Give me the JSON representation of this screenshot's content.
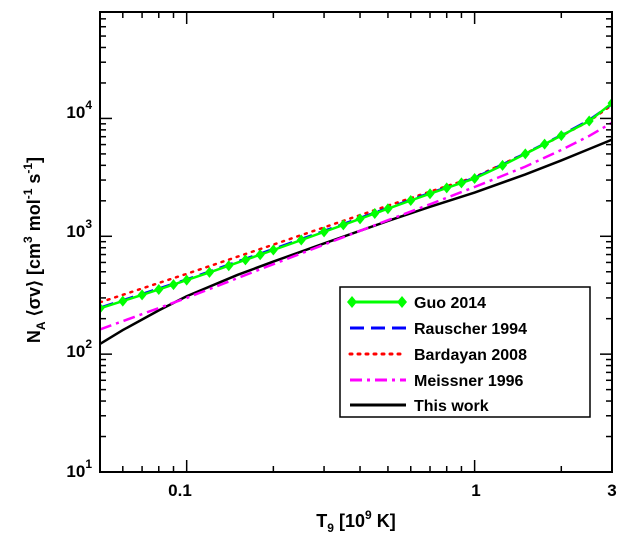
{
  "chart_data": {
    "type": "line",
    "xscale": "log",
    "yscale": "log",
    "xlim": [
      0.05,
      3
    ],
    "ylim": [
      10,
      80000
    ],
    "xlabel": {
      "main": "T",
      "sub": "9",
      "rest": " [10",
      "sup": "9",
      "end": " K]"
    },
    "ylabel": {
      "p1": "N",
      "sub_a": "A",
      "p2": " ⟨σv⟩ [cm",
      "sup3": "3",
      "p3": " mol",
      "sup_m1a": "-1",
      "p4": " s",
      "sup_m1b": "-1",
      "p5": "]"
    },
    "x_ticks": [
      {
        "value": 0.1,
        "label": "0.1"
      },
      {
        "value": 1,
        "label": "1"
      },
      {
        "value": 3,
        "label": "3"
      }
    ],
    "y_ticks": [
      {
        "value": 10,
        "base": "10",
        "exp": "1"
      },
      {
        "value": 100,
        "base": "10",
        "exp": "2"
      },
      {
        "value": 1000,
        "base": "10",
        "exp": "3"
      },
      {
        "value": 10000,
        "base": "10",
        "exp": "4"
      }
    ],
    "legend_position": "bottom-right",
    "grid": false,
    "series": [
      {
        "name": "Guo 2014",
        "color": "#00ff00",
        "style": "solid-diamond",
        "x": [
          0.05,
          0.06,
          0.07,
          0.08,
          0.09,
          0.1,
          0.12,
          0.14,
          0.16,
          0.18,
          0.2,
          0.25,
          0.3,
          0.35,
          0.4,
          0.45,
          0.5,
          0.6,
          0.7,
          0.8,
          0.9,
          1.0,
          1.25,
          1.5,
          1.75,
          2.0,
          2.5,
          3.0
        ],
        "y": [
          245,
          282,
          318,
          354,
          389,
          425,
          494,
          563,
          631,
          698,
          765,
          929,
          1090,
          1249,
          1406,
          1561,
          1714,
          2012,
          2298,
          2573,
          2838,
          3095,
          4000,
          5000,
          6050,
          7150,
          9500,
          13500
        ]
      },
      {
        "name": "Rauscher 1994",
        "color": "#0000ff",
        "style": "dashed",
        "x": [
          0.05,
          0.1,
          0.2,
          0.3,
          0.5,
          0.7,
          1.0,
          1.5,
          2.0,
          2.5,
          3.0
        ],
        "y": [
          248,
          430,
          780,
          1110,
          1740,
          2330,
          3130,
          5050,
          7200,
          9700,
          13300
        ]
      },
      {
        "name": "Bardayan 2008",
        "color": "#ff0000",
        "style": "dotted",
        "x": [
          0.05,
          0.1,
          0.2,
          0.3,
          0.5,
          0.7,
          1.0,
          1.5,
          2.0,
          2.5,
          3.0
        ],
        "y": [
          275,
          480,
          850,
          1190,
          1820,
          2390,
          3180,
          5050,
          7100,
          9500,
          13000
        ]
      },
      {
        "name": "Meissner 1996",
        "color": "#ff00ff",
        "style": "dashdot",
        "x": [
          0.05,
          0.1,
          0.2,
          0.3,
          0.5,
          0.7,
          1.0,
          1.5,
          2.0,
          2.5,
          3.0
        ],
        "y": [
          162,
          300,
          580,
          850,
          1370,
          1870,
          2620,
          3900,
          5400,
          7100,
          9200
        ]
      },
      {
        "name": "This work",
        "color": "#000000",
        "style": "solid",
        "x": [
          0.05,
          0.06,
          0.08,
          0.1,
          0.15,
          0.2,
          0.3,
          0.5,
          0.7,
          1.0,
          1.5,
          2.0,
          2.5,
          3.0
        ],
        "y": [
          122,
          160,
          235,
          310,
          470,
          610,
          870,
          1350,
          1780,
          2350,
          3350,
          4400,
          5500,
          6600
        ]
      }
    ]
  }
}
